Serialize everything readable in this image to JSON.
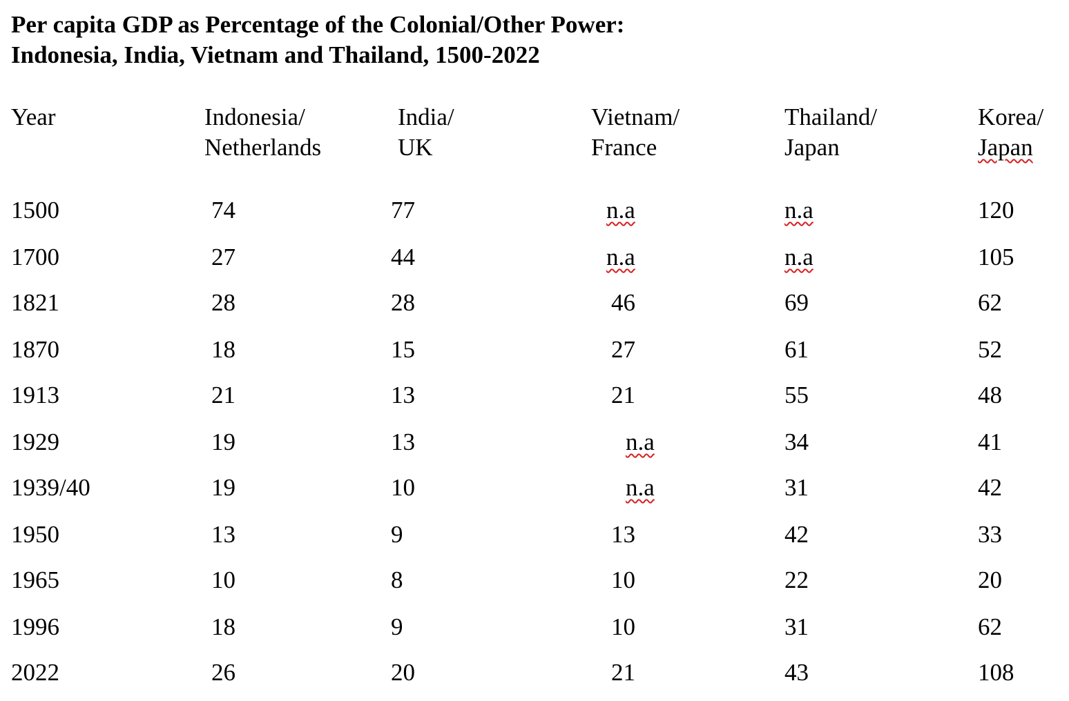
{
  "title": {
    "line1": "Per capita GDP as Percentage of the Colonial/Other Power:",
    "line2": "Indonesia, India, Vietnam and Thailand, 1500-2022"
  },
  "headers": [
    {
      "line1": "Year",
      "line2": ""
    },
    {
      "line1": "Indonesia/",
      "line2": "Netherlands"
    },
    {
      "line1": "India/",
      "line2": "UK"
    },
    {
      "line1": "Vietnam/",
      "line2": "France"
    },
    {
      "line1": "Thailand/",
      "line2": "Japan"
    },
    {
      "line1": "Korea/",
      "line2": "Japan"
    }
  ],
  "rows": [
    [
      "1500",
      "74",
      "77",
      "n.a",
      "n.a",
      "120"
    ],
    [
      "1700",
      "27",
      "44",
      "n.a",
      "n.a",
      "105"
    ],
    [
      "1821",
      "28",
      "28",
      "46",
      "69",
      "62"
    ],
    [
      "1870",
      "18",
      "15",
      "27",
      "61",
      "52"
    ],
    [
      "1913",
      "21",
      "13",
      "21",
      "55",
      "48"
    ],
    [
      "1929",
      "19",
      "13",
      "n.a",
      "34",
      "41"
    ],
    [
      "1939/40",
      "19",
      "10",
      "n.a",
      "31",
      "42"
    ],
    [
      "1950",
      "13",
      "9",
      "13",
      "42",
      "33"
    ],
    [
      "1965",
      "10",
      "8",
      "10",
      "22",
      "20"
    ],
    [
      "1996",
      "18",
      "9",
      "10",
      "31",
      "62"
    ],
    [
      "2022",
      "26",
      "20",
      "21",
      "43",
      "108"
    ]
  ],
  "chart_data": {
    "type": "table",
    "columns": [
      "Year",
      "Indonesia/ Netherlands",
      "India/ UK",
      "Vietnam/ France",
      "Thailand/ Japan",
      "Korea/ Japan"
    ],
    "rows": [
      [
        "1500",
        "74",
        "77",
        "n.a",
        "n.a",
        "120"
      ],
      [
        "1700",
        "27",
        "44",
        "n.a",
        "n.a",
        "105"
      ],
      [
        "1821",
        "28",
        "28",
        "46",
        "69",
        "62"
      ],
      [
        "1870",
        "18",
        "15",
        "27",
        "61",
        "52"
      ],
      [
        "1913",
        "21",
        "13",
        "21",
        "55",
        "48"
      ],
      [
        "1929",
        "19",
        "13",
        "n.a",
        "34",
        "41"
      ],
      [
        "1939/40",
        "19",
        "10",
        "n.a",
        "31",
        "42"
      ],
      [
        "1950",
        "13",
        "9",
        "13",
        "42",
        "33"
      ],
      [
        "1965",
        "10",
        "8",
        "10",
        "22",
        "20"
      ],
      [
        "1996",
        "18",
        "9",
        "10",
        "31",
        "62"
      ],
      [
        "2022",
        "26",
        "20",
        "21",
        "43",
        "108"
      ]
    ]
  },
  "spellcheck_underline_color": "#d62020"
}
